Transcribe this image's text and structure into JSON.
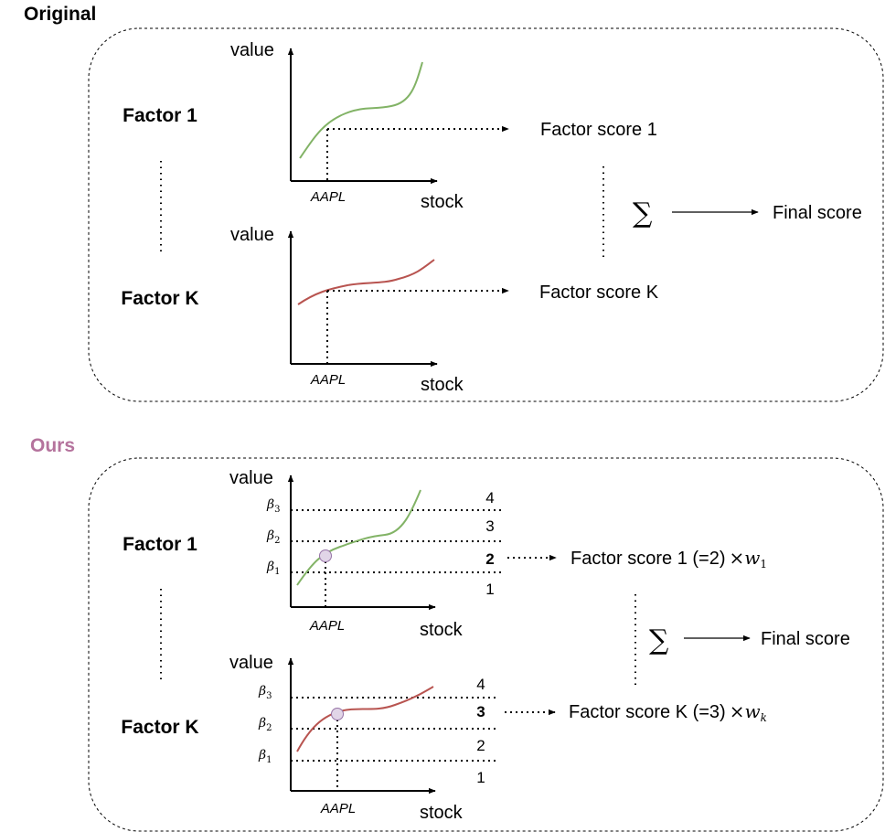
{
  "colors": {
    "ours_title": "#b5739d",
    "curve_green": "#82b366",
    "curve_red": "#b85450",
    "marker_fill": "#e1d5e7",
    "marker_stroke": "#9673a6"
  },
  "original": {
    "title": "Original",
    "factor1_label": "Factor 1",
    "factorK_label": "Factor K",
    "y_axis_label": "value",
    "x_axis_label": "stock",
    "ticker": "AAPL",
    "score1": "Factor score 1",
    "scoreK": "Factor score K",
    "sum_symbol": "∑",
    "final": "Final score"
  },
  "ours": {
    "title": "Ours",
    "factor1_label": "Factor 1",
    "factorK_label": "Factor K",
    "y_axis_label": "value",
    "x_axis_label": "stock",
    "ticker": "AAPL",
    "beta_symbol": "β",
    "beta_subscripts": [
      "1",
      "2",
      "3"
    ],
    "factor1_quantiles": [
      "4",
      "3",
      "2",
      "1"
    ],
    "factorK_quantiles": [
      "4",
      "3",
      "2",
      "1"
    ],
    "factor1_selected_quantile": "2",
    "factorK_selected_quantile": "3",
    "score1_text": "Factor score 1 (=2)",
    "scoreK_text": "Factor score K (=3)",
    "times_symbol": "×",
    "weight_var": "w",
    "weight1_sub": "1",
    "weightK_sub": "k",
    "sum_symbol": "∑",
    "final": "Final score"
  }
}
